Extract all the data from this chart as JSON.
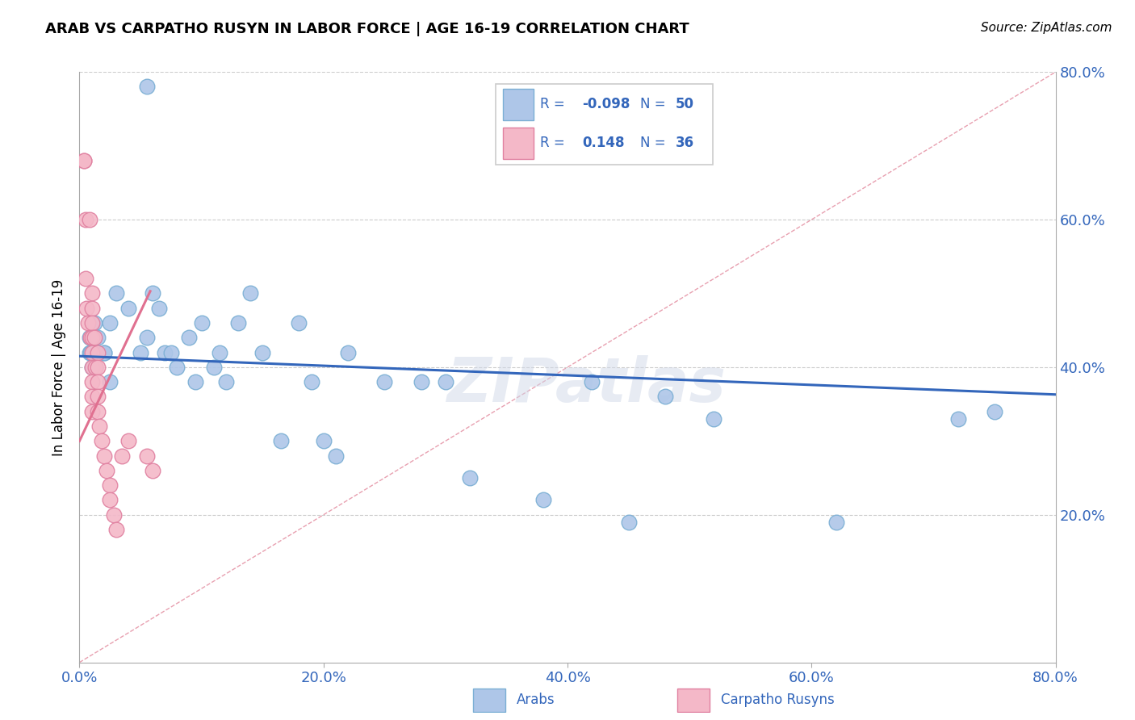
{
  "title": "ARAB VS CARPATHO RUSYN IN LABOR FORCE | AGE 16-19 CORRELATION CHART",
  "source": "Source: ZipAtlas.com",
  "ylabel": "In Labor Force | Age 16-19",
  "xlim": [
    0.0,
    0.8
  ],
  "ylim": [
    0.0,
    0.8
  ],
  "xticks": [
    0.0,
    0.2,
    0.4,
    0.6,
    0.8
  ],
  "yticks": [
    0.2,
    0.4,
    0.6,
    0.8
  ],
  "xticklabels": [
    "0.0%",
    "20.0%",
    "40.0%",
    "60.0%",
    "80.0%"
  ],
  "right_yticklabels": [
    "20.0%",
    "40.0%",
    "60.0%",
    "80.0%"
  ],
  "arab_R": -0.098,
  "arab_N": 50,
  "rusyn_R": 0.148,
  "rusyn_N": 36,
  "arab_color": "#aec6e8",
  "arab_edge_color": "#7bafd4",
  "rusyn_color": "#f4b8c8",
  "rusyn_edge_color": "#e080a0",
  "trend_line_arab_color": "#3366bb",
  "trend_line_rusyn_color": "#e07090",
  "diagonal_color": "#e8a0b0",
  "watermark": "ZIPatlas",
  "legend_R_color": "#3366bb",
  "legend_N_color": "#3366bb",
  "arab_x": [
    0.055,
    0.008,
    0.008,
    0.009,
    0.01,
    0.01,
    0.01,
    0.012,
    0.013,
    0.015,
    0.02,
    0.02,
    0.025,
    0.025,
    0.03,
    0.04,
    0.05,
    0.055,
    0.06,
    0.065,
    0.07,
    0.075,
    0.08,
    0.09,
    0.095,
    0.1,
    0.11,
    0.115,
    0.12,
    0.13,
    0.14,
    0.15,
    0.165,
    0.18,
    0.19,
    0.2,
    0.21,
    0.22,
    0.25,
    0.28,
    0.3,
    0.32,
    0.38,
    0.42,
    0.45,
    0.48,
    0.52,
    0.62,
    0.72,
    0.75
  ],
  "arab_y": [
    0.78,
    0.42,
    0.44,
    0.42,
    0.4,
    0.42,
    0.44,
    0.46,
    0.4,
    0.44,
    0.42,
    0.42,
    0.38,
    0.46,
    0.5,
    0.48,
    0.42,
    0.44,
    0.5,
    0.48,
    0.42,
    0.42,
    0.4,
    0.44,
    0.38,
    0.46,
    0.4,
    0.42,
    0.38,
    0.46,
    0.5,
    0.42,
    0.3,
    0.46,
    0.38,
    0.3,
    0.28,
    0.42,
    0.38,
    0.38,
    0.38,
    0.25,
    0.22,
    0.38,
    0.19,
    0.36,
    0.33,
    0.19,
    0.33,
    0.34
  ],
  "rusyn_x": [
    0.004,
    0.004,
    0.005,
    0.005,
    0.006,
    0.007,
    0.008,
    0.009,
    0.01,
    0.01,
    0.01,
    0.01,
    0.01,
    0.01,
    0.01,
    0.01,
    0.01,
    0.012,
    0.013,
    0.015,
    0.015,
    0.015,
    0.015,
    0.015,
    0.016,
    0.018,
    0.02,
    0.022,
    0.025,
    0.025,
    0.028,
    0.03,
    0.035,
    0.04,
    0.055,
    0.06
  ],
  "rusyn_y": [
    0.68,
    0.68,
    0.6,
    0.52,
    0.48,
    0.46,
    0.6,
    0.44,
    0.5,
    0.48,
    0.46,
    0.44,
    0.42,
    0.4,
    0.38,
    0.36,
    0.34,
    0.44,
    0.4,
    0.42,
    0.4,
    0.38,
    0.36,
    0.34,
    0.32,
    0.3,
    0.28,
    0.26,
    0.24,
    0.22,
    0.2,
    0.18,
    0.28,
    0.3,
    0.28,
    0.26
  ]
}
